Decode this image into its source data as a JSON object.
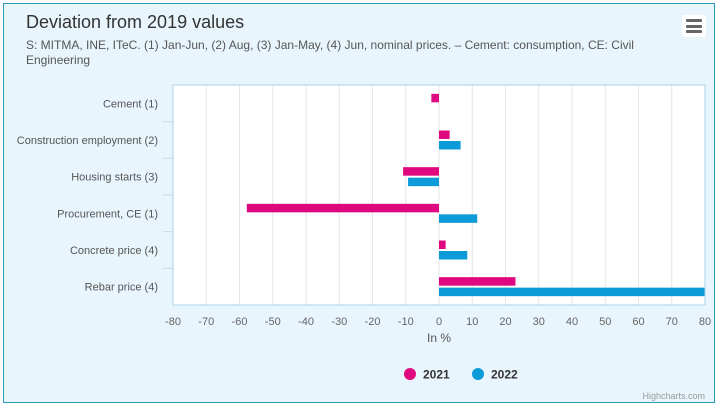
{
  "header": {
    "title": "Deviation from 2019 values",
    "subtitle": "S: MITMA, INE, ITeC. (1) Jan-Jun, (2) Aug, (3) Jan-May, (4) Jun, nominal prices. – Cement: consumption, CE: Civil Engineering",
    "menu_icon": "hamburger-menu-icon"
  },
  "credit": "Highcharts.com",
  "colors": {
    "2021": "#e0087e",
    "2022": "#0d9ad8",
    "background": "#e8f5fc",
    "border": "#2a9bbd"
  },
  "chart_data": {
    "type": "bar",
    "orientation": "horizontal",
    "title": "Deviation from 2019 values",
    "subtitle": "S: MITMA, INE, ITeC. (1) Jan-Jun, (2) Aug, (3) Jan-May, (4) Jun, nominal prices. – Cement: consumption, CE: Civil Engineering",
    "categories": [
      "Cement (1)",
      "Construction employment (2)",
      "Housing starts (3)",
      "Procurement, CE (1)",
      "Concrete price (4)",
      "Rebar price (4)"
    ],
    "series": [
      {
        "name": "2021",
        "values": [
          -2.3,
          3.2,
          -10.8,
          -57.8,
          2.0,
          23.0
        ]
      },
      {
        "name": "2022",
        "values": [
          null,
          6.5,
          -9.3,
          11.5,
          8.5,
          80.0
        ]
      }
    ],
    "xlabel": "In %",
    "ylabel": "",
    "xlim": [
      -80,
      80
    ],
    "xticks": [
      "-80",
      "-70",
      "-60",
      "-50",
      "-40",
      "-30",
      "-20",
      "-10",
      "0",
      "10",
      "20",
      "30",
      "40",
      "50",
      "60",
      "70",
      "80"
    ],
    "grid": true,
    "legend": {
      "position": "bottom-center",
      "items": [
        "2021",
        "2022"
      ]
    }
  }
}
